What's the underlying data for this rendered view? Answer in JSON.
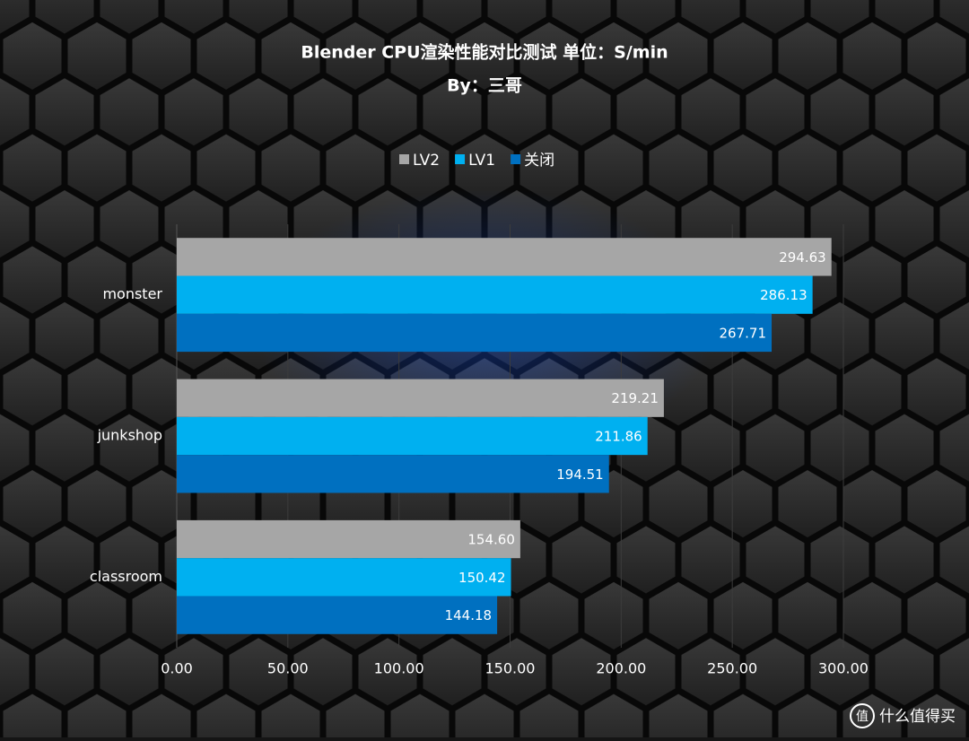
{
  "chart_data": {
    "type": "hbar",
    "title": "Blender CPU渲染性能对比测试 单位：S/min",
    "subtitle": "By：三哥",
    "categories": [
      "monster",
      "junkshop",
      "classroom"
    ],
    "series": [
      {
        "name": "LV2",
        "color": "#a6a6a6",
        "values": [
          294.63,
          219.21,
          154.6
        ],
        "value_labels": [
          "294.63",
          "219.21",
          "154.60"
        ]
      },
      {
        "name": "LV1",
        "color": "#00b0f0",
        "values": [
          286.13,
          211.86,
          150.42
        ],
        "value_labels": [
          "286.13",
          "211.86",
          "150.42"
        ]
      },
      {
        "name": "关闭",
        "color": "#0070c0",
        "values": [
          267.71,
          194.51,
          144.18
        ],
        "value_labels": [
          "267.71",
          "194.51",
          "144.18"
        ]
      }
    ],
    "xlim": [
      0,
      300
    ],
    "xticks": [
      {
        "value": 0,
        "label": "0.00"
      },
      {
        "value": 50,
        "label": "50.00"
      },
      {
        "value": 100,
        "label": "100.00"
      },
      {
        "value": 150,
        "label": "150.00"
      },
      {
        "value": 200,
        "label": "200.00"
      },
      {
        "value": 250,
        "label": "250.00"
      },
      {
        "value": 300,
        "label": "300.00"
      }
    ],
    "grid": true,
    "legend": "top"
  },
  "watermark_icon": "值",
  "watermark": "什么值得买"
}
